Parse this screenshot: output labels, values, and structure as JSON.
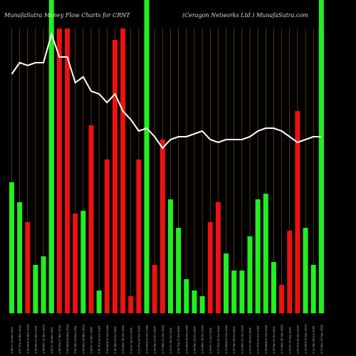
{
  "header": {
    "left": "MunafaSutra  Money Flow  Charts for CRNT",
    "right": "(Ceragon  Networks Ltd.) MunafaSutra.com"
  },
  "chart_data": {
    "type": "bar",
    "title": "MunafaSutra  Money Flow  Charts for CRNT",
    "subtitle": "(Ceragon  Networks Ltd.) MunafaSutra.com",
    "ylim": [
      0,
      100
    ],
    "grid": true,
    "colors": {
      "up": "#22ee22",
      "down": "#ee1111",
      "highlight": "#22ee22",
      "line": "#ffffff",
      "grid": "#8a5a1a",
      "background": "#000000"
    },
    "categories": [
      "2.48 Fri 15 Nov 2024",
      "2.47 Thu 14 Nov 2024",
      "2.50 Wed 13 Nov 2024",
      "2.56 Tue 12 Nov 2024",
      "2.58 Mon 11 Nov 2024",
      "2.60 Fri 08 Nov 2024",
      "2.85 Thu 07 Nov 2024",
      "2.60 Wed 06 Nov 2024",
      "2.60 Tue 05 Nov 2024",
      "2.54 Mon 04 Nov 2024",
      "2.56 Fri 01 Nov 2024",
      "2.41 Thu 31 Oct 2024",
      "2.40 Wed 30 Oct 2024",
      "2.36 Tue 29 Oct 2024",
      "2.40 Mon 28 Oct 2024",
      "2.31 Fri 25 Oct 2024",
      "2.22 Thu 24 Oct 2024",
      "2.19 Wed 23 Oct 2024",
      "2.14 Tue 22 Oct 2024",
      "2.17 Mon 21 Oct 2024",
      "2.12 Fri 18 Oct 2024",
      "2.06 Thu 17 Oct 2024",
      "2.11 Wed 16 Oct 2024",
      "2.14 Tue 15 Oct 2024",
      "2.14 Mon 14 Oct 2024",
      "2.16 Fri 11 Oct 2024",
      "2.17 Thu 10 Oct 2024",
      "2.12 Wed 09 Oct 2024",
      "2.10 Tue 08 Oct 2024",
      "2.12 Mon 07 Oct 2024",
      "2.12 Fri 04 Oct 2024",
      "2.13 Thu 03 Oct 2024",
      "2.18 Wed 02 Oct 2024",
      "2.19 Tue 01 Oct 2024",
      "2.17 Mon 30 Sep 2024",
      "2.14 Fri 27 Sep 2024",
      "2.09 Thu 26 Sep 2024",
      "2.10 Wed 25 Sep 2024",
      "2.12 Tue 24 Sep 2024",
      "2.13 Mon 23 Sep 2024"
    ],
    "series": [
      {
        "values": [
          46,
          39,
          32,
          17,
          20,
          100,
          100,
          100,
          35,
          36,
          66,
          8,
          54,
          96,
          100,
          6,
          54,
          100,
          17,
          61,
          40,
          30,
          12,
          8,
          6,
          32,
          39,
          21,
          15,
          15,
          27,
          40,
          42,
          18,
          10,
          29,
          71,
          30,
          17,
          100
        ],
        "directions": [
          "up",
          "up",
          "down",
          "up",
          "up",
          "up",
          "down",
          "down",
          "down",
          "up",
          "down",
          "up",
          "down",
          "down",
          "down",
          "down",
          "down",
          "up",
          "down",
          "down",
          "up",
          "up",
          "up",
          "up",
          "up",
          "down",
          "down",
          "up",
          "up",
          "up",
          "up",
          "up",
          "up",
          "up",
          "down",
          "down",
          "down",
          "up",
          "up",
          "up"
        ],
        "highlight": [
          false,
          false,
          false,
          false,
          false,
          true,
          false,
          false,
          false,
          false,
          false,
          false,
          false,
          false,
          false,
          false,
          false,
          true,
          false,
          false,
          false,
          false,
          false,
          false,
          false,
          false,
          false,
          false,
          false,
          false,
          false,
          false,
          false,
          false,
          false,
          false,
          false,
          false,
          false,
          true
        ]
      },
      {
        "values": [
          84,
          88,
          87,
          88,
          88,
          98,
          90,
          90,
          81,
          83,
          78,
          77,
          74,
          77,
          71,
          68,
          64,
          65,
          62,
          58,
          61,
          62,
          62,
          63,
          64,
          61,
          60,
          61,
          61,
          61,
          62,
          64,
          65,
          65,
          64,
          62,
          60,
          61,
          62,
          62
        ]
      }
    ]
  }
}
